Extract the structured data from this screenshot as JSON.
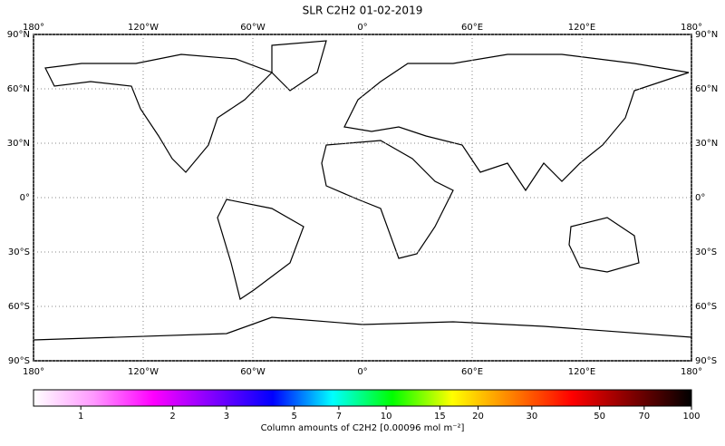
{
  "chart_data": {
    "type": "map",
    "title": "SLR C2H2 01-02-2019",
    "xlim": [
      -180,
      180
    ],
    "ylim": [
      -90,
      90
    ],
    "xticks": [
      {
        "value": -180,
        "label": "180°"
      },
      {
        "value": -120,
        "label": "120°W"
      },
      {
        "value": -60,
        "label": "60°W"
      },
      {
        "value": 0,
        "label": "0°"
      },
      {
        "value": 60,
        "label": "60°E"
      },
      {
        "value": 120,
        "label": "120°E"
      },
      {
        "value": 180,
        "label": "180°"
      }
    ],
    "yticks": [
      {
        "value": 90,
        "label": "90°N"
      },
      {
        "value": 60,
        "label": "60°N"
      },
      {
        "value": 30,
        "label": "30°N"
      },
      {
        "value": 0,
        "label": "0°"
      },
      {
        "value": -30,
        "label": "30°S"
      },
      {
        "value": -60,
        "label": "60°S"
      },
      {
        "value": -90,
        "label": "90°S"
      }
    ],
    "grid": true,
    "colorbar": {
      "label": "Column amounts of C2H2 [0.00096 mol m⁻²]",
      "log_scale": true,
      "lim": [
        0.7,
        100
      ],
      "ticks": [
        1,
        2,
        3,
        5,
        7,
        10,
        15,
        20,
        30,
        50,
        70,
        100
      ],
      "colormap": [
        "#ffffff",
        "#ff99ff",
        "#ff00ff",
        "#8000ff",
        "#0000ff",
        "#00ffff",
        "#00ff00",
        "#ffff00",
        "#ff8000",
        "#ff0000",
        "#800000",
        "#000000"
      ]
    }
  }
}
